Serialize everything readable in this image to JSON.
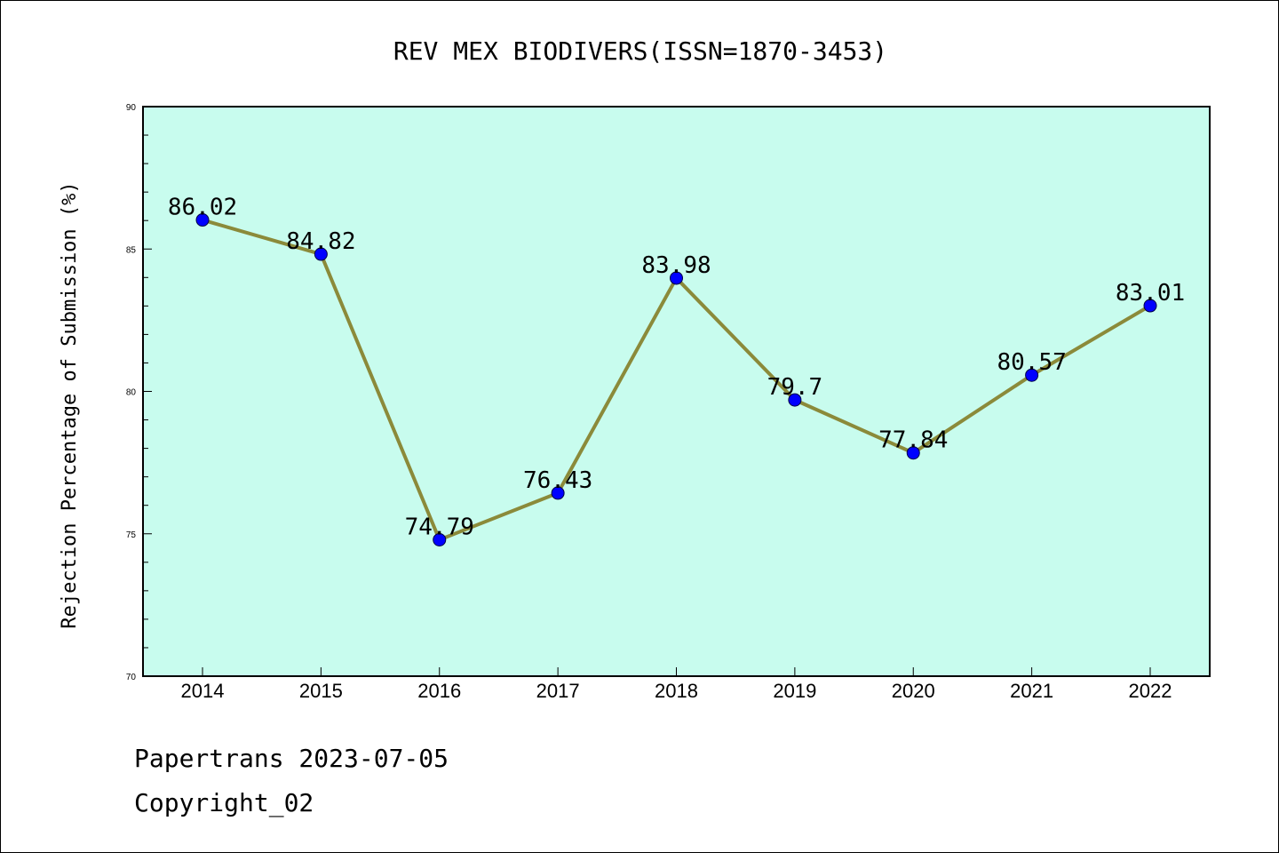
{
  "chart_data": {
    "type": "line",
    "title": "REV MEX BIODIVERS(ISSN=1870-3453)",
    "xlabel": "",
    "ylabel": "Rejection Percentage of Submission (%)",
    "categories": [
      "2014",
      "2015",
      "2016",
      "2017",
      "2018",
      "2019",
      "2020",
      "2021",
      "2022"
    ],
    "series": [
      {
        "values": [
          86.02,
          84.82,
          74.79,
          76.43,
          83.98,
          79.7,
          77.84,
          80.57,
          83.01
        ],
        "labels": [
          "86.02",
          "84.82",
          "74.79",
          "76.43",
          "83.98",
          "79.7",
          "77.84",
          "80.57",
          "83.01"
        ]
      }
    ],
    "ylim": [
      70,
      90
    ],
    "yticks": [
      "70",
      "75",
      "80",
      "85",
      "90"
    ],
    "grid": false,
    "legend": "none",
    "colors": {
      "plot_background": "#c8fcee",
      "line": "#8b8a3a",
      "marker": "#0000ff"
    }
  },
  "footer": {
    "line1": "Papertrans 2023-07-05",
    "line2": "Copyright_02"
  }
}
